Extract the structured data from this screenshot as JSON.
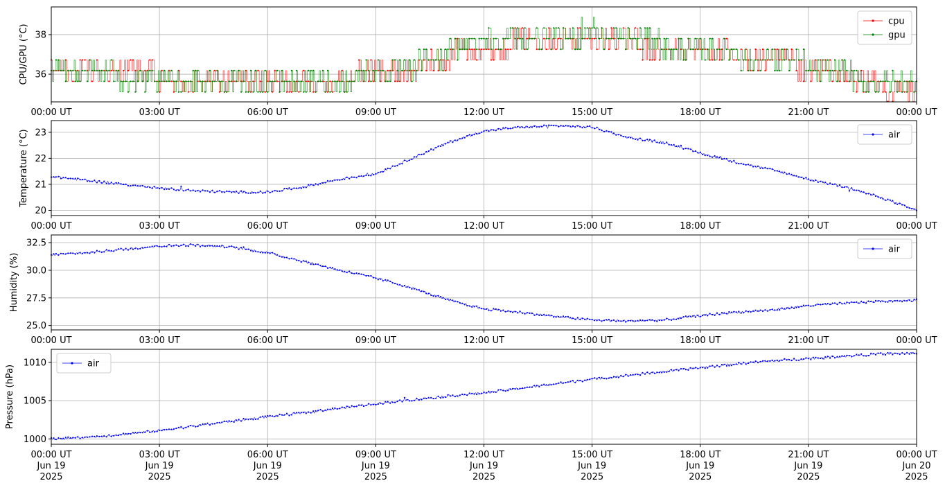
{
  "colors": {
    "cpu": "#ff0000",
    "gpu": "#008000",
    "air": "#0000ff",
    "grid": "#b0b0b0",
    "axes": "#000000"
  },
  "x_ticks": [
    "00:00 UT",
    "03:00 UT",
    "06:00 UT",
    "09:00 UT",
    "12:00 UT",
    "15:00 UT",
    "18:00 UT",
    "21:00 UT",
    "00:00 UT"
  ],
  "x_ticks_dated": [
    [
      "00:00 UT",
      "Jun 19",
      "2025"
    ],
    [
      "03:00 UT",
      "Jun 19",
      "2025"
    ],
    [
      "06:00 UT",
      "Jun 19",
      "2025"
    ],
    [
      "09:00 UT",
      "Jun 19",
      "2025"
    ],
    [
      "12:00 UT",
      "Jun 19",
      "2025"
    ],
    [
      "15:00 UT",
      "Jun 19",
      "2025"
    ],
    [
      "18:00 UT",
      "Jun 19",
      "2025"
    ],
    [
      "21:00 UT",
      "Jun 19",
      "2025"
    ],
    [
      "00:00 UT",
      "Jun 20",
      "2025"
    ]
  ],
  "chart_data": [
    {
      "type": "line",
      "ylabel": "CPU/GPU (°C)",
      "xlim": [
        "2025-06-19 00:00",
        "2025-06-20 00:00"
      ],
      "ylim": [
        34.6,
        39.4
      ],
      "yticks": [
        36,
        38
      ],
      "ytick_labels": [
        "36",
        "38"
      ],
      "grid": true,
      "legend": "top-right",
      "x_hours": [
        0,
        2,
        4,
        6,
        8,
        9.5,
        10.5,
        11.5,
        13,
        14,
        15,
        16,
        17,
        18,
        19,
        20,
        21,
        22,
        23,
        24
      ],
      "series": [
        {
          "name": "cpu",
          "color": "#ff0000",
          "values": [
            36.2,
            36.0,
            35.8,
            35.7,
            35.8,
            36.2,
            36.5,
            37.3,
            37.6,
            37.6,
            37.8,
            37.6,
            37.3,
            37.3,
            36.9,
            36.7,
            36.3,
            35.9,
            35.4,
            35.0
          ]
        },
        {
          "name": "gpu",
          "color": "#008000",
          "values": [
            36.1,
            35.9,
            35.7,
            35.6,
            35.8,
            36.2,
            36.6,
            37.6,
            38.0,
            38.0,
            38.1,
            37.9,
            37.5,
            37.4,
            37.0,
            36.8,
            36.4,
            36.0,
            35.6,
            35.4
          ]
        }
      ]
    },
    {
      "type": "line",
      "ylabel": "Temperature (°C)",
      "xlim": [
        "2025-06-19 00:00",
        "2025-06-20 00:00"
      ],
      "ylim": [
        19.8,
        23.45
      ],
      "yticks": [
        20,
        21,
        22,
        23
      ],
      "ytick_labels": [
        "20",
        "21",
        "22",
        "23"
      ],
      "grid": true,
      "legend": "top-right",
      "x_hours": [
        0,
        1,
        2,
        3,
        4,
        5,
        6,
        7,
        8,
        9,
        10,
        11,
        12,
        13,
        14,
        15,
        16,
        17,
        18,
        19,
        20,
        21,
        22,
        23,
        24
      ],
      "series": [
        {
          "name": "air",
          "color": "#0000ff",
          "values": [
            21.3,
            21.15,
            21.0,
            20.85,
            20.75,
            20.7,
            20.7,
            20.9,
            21.2,
            21.4,
            22.0,
            22.6,
            23.05,
            23.2,
            23.25,
            23.2,
            22.8,
            22.6,
            22.2,
            21.85,
            21.55,
            21.2,
            20.9,
            20.5,
            20.0
          ]
        }
      ]
    },
    {
      "type": "line",
      "ylabel": "Humidity (%)",
      "xlim": [
        "2025-06-19 00:00",
        "2025-06-20 00:00"
      ],
      "ylim": [
        24.6,
        33.2
      ],
      "yticks": [
        25.0,
        27.5,
        30.0,
        32.5
      ],
      "ytick_labels": [
        "25.0",
        "27.5",
        "30.0",
        "32.5"
      ],
      "grid": true,
      "legend": "top-right",
      "x_hours": [
        0,
        1,
        2,
        3,
        4,
        5,
        6,
        7,
        8,
        9,
        10,
        11,
        12,
        13,
        14,
        15,
        16,
        17,
        18,
        19,
        20,
        21,
        22,
        23,
        24
      ],
      "series": [
        {
          "name": "air",
          "color": "#0000ff",
          "values": [
            31.4,
            31.6,
            31.9,
            32.2,
            32.3,
            32.1,
            31.6,
            30.8,
            30.0,
            29.3,
            28.4,
            27.3,
            26.5,
            26.2,
            25.8,
            25.5,
            25.4,
            25.5,
            25.9,
            26.2,
            26.4,
            26.8,
            27.0,
            27.2,
            27.3
          ]
        }
      ]
    },
    {
      "type": "line",
      "ylabel": "Pressure (hPa)",
      "xlim": [
        "2025-06-19 00:00",
        "2025-06-20 00:00"
      ],
      "ylim": [
        999.3,
        1011.7
      ],
      "yticks": [
        1000,
        1005,
        1010
      ],
      "ytick_labels": [
        "1000",
        "1005",
        "1010"
      ],
      "grid": true,
      "legend": "top-left",
      "x_hours": [
        0,
        1,
        2,
        3,
        4,
        5,
        6,
        7,
        8,
        9,
        10,
        11,
        12,
        13,
        14,
        15,
        16,
        17,
        18,
        19,
        20,
        21,
        22,
        23,
        24
      ],
      "series": [
        {
          "name": "air",
          "color": "#0000ff",
          "values": [
            1000.0,
            1000.2,
            1000.6,
            1001.1,
            1001.7,
            1002.3,
            1002.9,
            1003.4,
            1004.0,
            1004.6,
            1005.1,
            1005.6,
            1006.0,
            1006.6,
            1007.2,
            1007.8,
            1008.3,
            1008.8,
            1009.3,
            1009.8,
            1010.2,
            1010.5,
            1010.8,
            1011.1,
            1011.2
          ]
        }
      ]
    }
  ]
}
